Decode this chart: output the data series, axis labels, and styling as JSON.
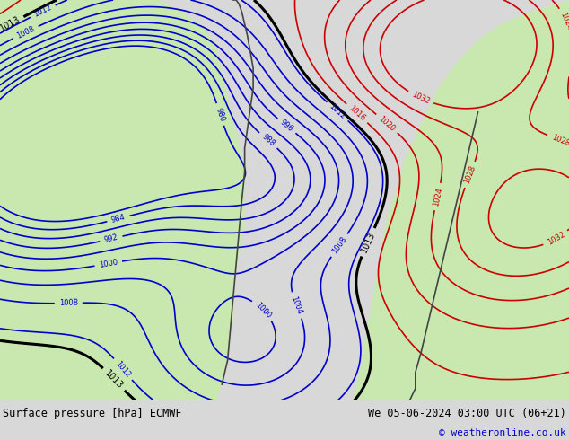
{
  "title_left": "Surface pressure [hPa] ECMWF",
  "title_right": "We 05-06-2024 03:00 UTC (06+21)",
  "copyright": "© weatheronline.co.uk",
  "bg_color": "#d8d8d8",
  "land_color": "#c8e8b0",
  "ocean_color": "#d8d8d8",
  "blue_contour_color": "#0000cc",
  "red_contour_color": "#cc0000",
  "black_contour_color": "#000000",
  "fig_width": 6.34,
  "fig_height": 4.9,
  "bottom_bar_height": 0.09,
  "font_size_bottom": 8.5,
  "font_size_copyright": 8.0
}
